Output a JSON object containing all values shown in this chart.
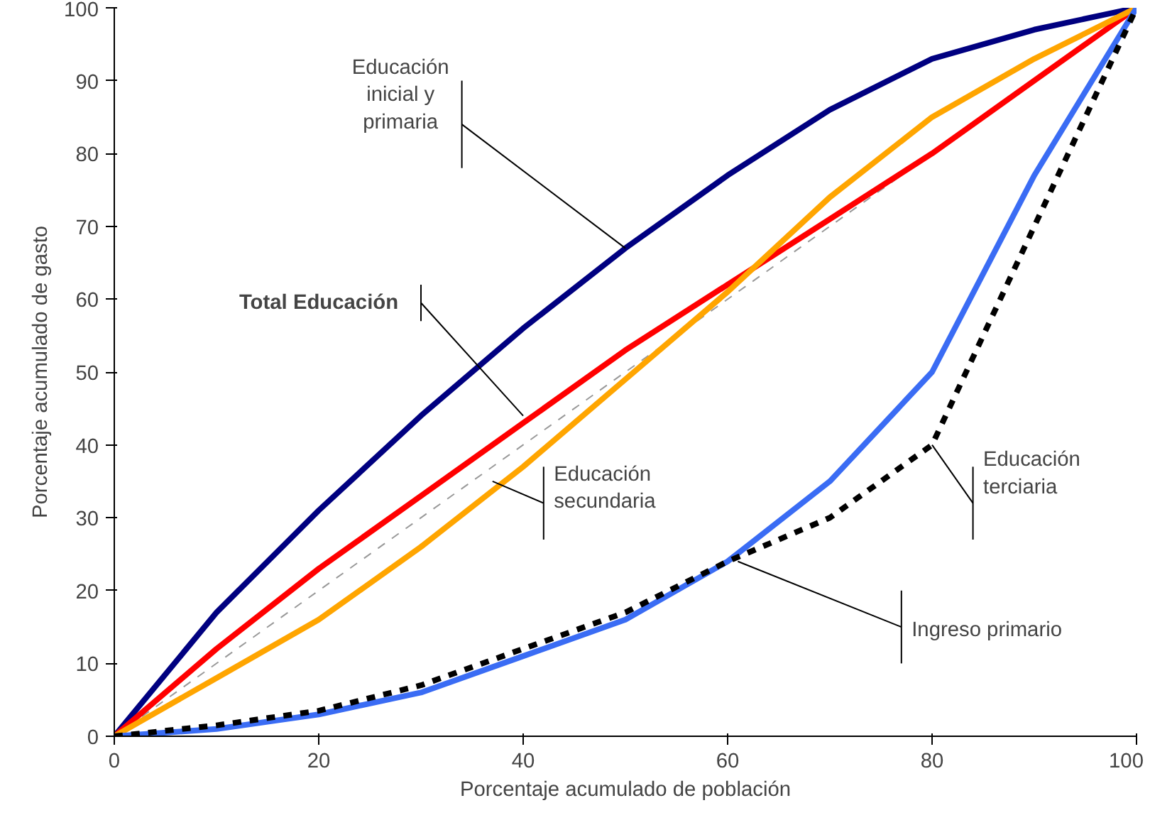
{
  "chart_data": {
    "type": "line",
    "xlabel": "Porcentaje acumulado de población",
    "ylabel": "Porcentaje acumulado de gasto",
    "x": [
      0,
      10,
      20,
      30,
      40,
      50,
      60,
      70,
      80,
      90,
      100
    ],
    "xlim": [
      0,
      100
    ],
    "ylim": [
      0,
      100
    ],
    "xticks": [
      0,
      20,
      40,
      60,
      80,
      100
    ],
    "yticks": [
      0,
      10,
      20,
      30,
      40,
      50,
      60,
      70,
      80,
      90,
      100
    ],
    "grid": false,
    "series": [
      {
        "color": "#999999",
        "line_style": "dashed",
        "x": [
          0,
          100
        ],
        "values": [
          0,
          100
        ]
      },
      {
        "color": "#000080",
        "values": [
          0,
          17,
          31,
          44,
          56,
          67,
          77,
          86,
          93,
          97,
          100
        ]
      },
      {
        "color": "#ff0000",
        "values": [
          0,
          12,
          23,
          33,
          43,
          53,
          62,
          71,
          80,
          90,
          100
        ]
      },
      {
        "color": "#ffa500",
        "values": [
          0,
          8,
          16,
          26,
          37,
          49,
          61,
          74,
          85,
          93,
          100
        ]
      },
      {
        "color": "#3a6cf4",
        "values": [
          0,
          1,
          3,
          6,
          11,
          16,
          24,
          35,
          50,
          77,
          100
        ]
      },
      {
        "color": "#000000",
        "line_style": "dashed",
        "values": [
          0,
          1.5,
          3.5,
          7,
          12,
          17,
          24,
          30,
          40,
          70,
          100
        ]
      }
    ],
    "annotations": [
      {
        "text": "Educación\ninicial y\nprimaria",
        "x": 50,
        "y": 67
      },
      {
        "text": "Total Educación",
        "x": 40,
        "y": 44
      },
      {
        "text": "Educación\nsecundaria",
        "x": 37,
        "y": 35
      },
      {
        "text": "Educación\nterciaria",
        "x": 80,
        "y": 40
      },
      {
        "text": "Ingreso primario",
        "x": 61,
        "y": 24
      }
    ]
  }
}
